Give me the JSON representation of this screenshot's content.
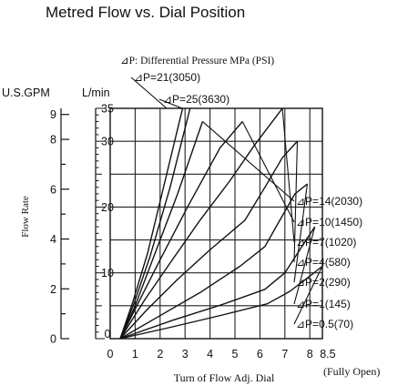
{
  "chart_data": {
    "type": "line",
    "title": "Metred Flow vs. Dial Position",
    "xlabel": "Turn of Flow Adj. Dial",
    "x_end_note": "(Fully Open)",
    "x_ticks": [
      "0",
      "1",
      "2",
      "3",
      "4",
      "5",
      "6",
      "7",
      "8",
      "8.5"
    ],
    "xlim": [
      0,
      8.5
    ],
    "ylabel": "Flow Rate",
    "y_unit_gpm": "U.S.GPM",
    "y_unit_lpm": "L/min",
    "ylim_lpm": [
      0,
      35
    ],
    "gpm_ticks": [
      "0",
      "2",
      "4",
      "6",
      "8",
      "9"
    ],
    "lpm_ticks": [
      "0",
      "10",
      "20",
      "30",
      "35"
    ],
    "grid": true,
    "pressure_header": "⊿P: Differential Pressure MPa (PSI)",
    "series": [
      {
        "name": "⊿P=25(3630)",
        "x": [
          0.4,
          0.9,
          1.5,
          2.2,
          2.9
        ],
        "y": [
          0,
          5.5,
          13,
          24,
          35
        ]
      },
      {
        "name": "⊿P=21(3050)",
        "x": [
          0.4,
          0.95,
          1.6,
          2.4,
          3.2
        ],
        "y": [
          0,
          5.3,
          12.5,
          23,
          35
        ]
      },
      {
        "name": "⊿P=14(2030)",
        "x": [
          0.4,
          1.0,
          1.7,
          2.7,
          3.7
        ],
        "y": [
          0,
          5,
          12,
          22,
          33
        ]
      },
      {
        "name": "⊿P=10(1450)",
        "x": [
          0.4,
          1.2,
          2.0,
          3.1,
          4.4,
          5.3
        ],
        "y": [
          0,
          6,
          12,
          20,
          29,
          33
        ]
      },
      {
        "name": "⊿P=7(1020)",
        "x": [
          0.4,
          1.4,
          2.4,
          3.6,
          4.8,
          5.8,
          6.9
        ],
        "y": [
          0,
          6,
          11.5,
          18,
          24,
          29.5,
          35
        ]
      },
      {
        "name": "⊿P=4(580)",
        "x": [
          0.4,
          1.5,
          2.7,
          4.0,
          5.4,
          6.2,
          6.9,
          7.5
        ],
        "y": [
          0,
          4.5,
          9,
          13.5,
          18,
          23,
          27.5,
          30
        ]
      },
      {
        "name": "⊿P=2(290)",
        "x": [
          0.4,
          2.0,
          3.6,
          5.2,
          6.2,
          6.8,
          7.4,
          7.9
        ],
        "y": [
          0,
          3.5,
          7,
          11,
          14,
          18,
          22,
          23.5
        ]
      },
      {
        "name": "⊿P=1(145)",
        "x": [
          0.4,
          2.5,
          4.5,
          6.2,
          7.0,
          7.6,
          8.2
        ],
        "y": [
          0,
          2.8,
          5.2,
          7.5,
          10,
          13.5,
          17
        ]
      },
      {
        "name": "⊿P=0.5(70)",
        "x": [
          0.4,
          2.5,
          4.5,
          6.3,
          7.2,
          8.0,
          8.5
        ],
        "y": [
          0,
          1.8,
          3.6,
          5.3,
          7.2,
          9.5,
          11
        ]
      }
    ]
  }
}
